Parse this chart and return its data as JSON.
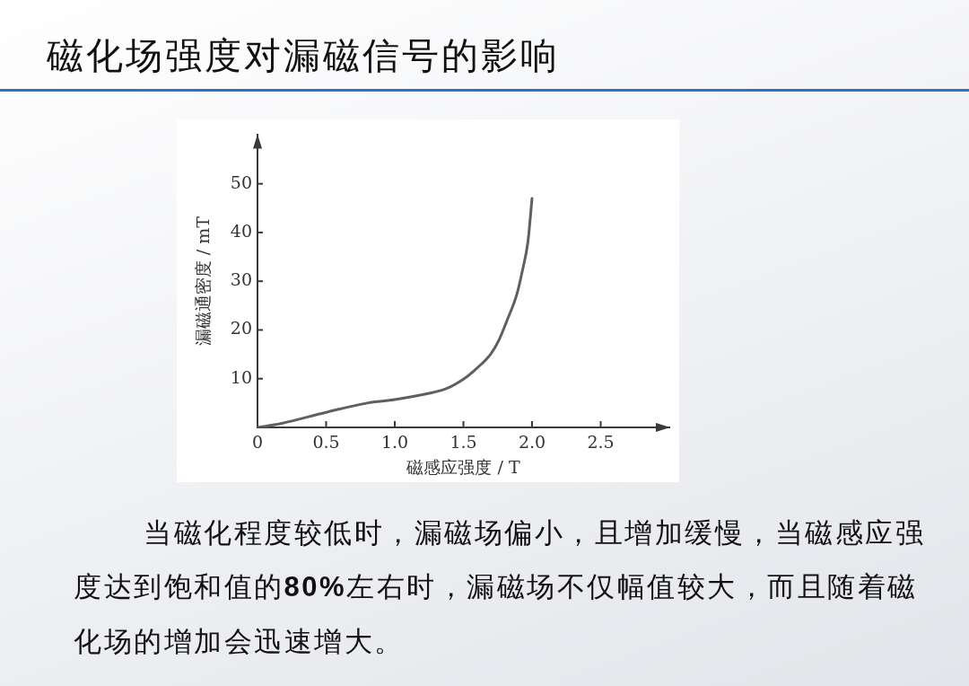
{
  "chart_data": {
    "type": "line",
    "title": "磁化场强度对漏磁信号的影响",
    "xlabel": "磁感应强度 / T",
    "ylabel": "漏磁通密度 / mT",
    "x": [
      0,
      0.17,
      0.5,
      0.8,
      1.0,
      1.25,
      1.37,
      1.5,
      1.6,
      1.7,
      1.76,
      1.82,
      1.89,
      1.93,
      1.97,
      2.0
    ],
    "values": [
      0,
      0.8,
      3.1,
      5.0,
      5.7,
      7.0,
      7.9,
      9.9,
      12.2,
      15.1,
      18.0,
      22.1,
      27.4,
      32.2,
      38.1,
      47
    ],
    "color": "#5f5f5f",
    "xlim": [
      0,
      3
    ],
    "ylim": [
      0,
      60
    ],
    "xticks": [
      0,
      0.5,
      {
        "value": 1,
        "label": "1.0"
      },
      1.5,
      {
        "value": 2,
        "label": "2.0"
      },
      2.5
    ],
    "yticks": [
      10,
      20,
      30,
      40,
      50
    ],
    "annotations": [
      "当磁化程度较低时，漏磁场偏小，且增加缓慢，当磁感应强度达到饱和值的80%左右时，漏磁场不仅幅值较大，而且随着磁化场的增加会迅速增大。"
    ]
  }
}
